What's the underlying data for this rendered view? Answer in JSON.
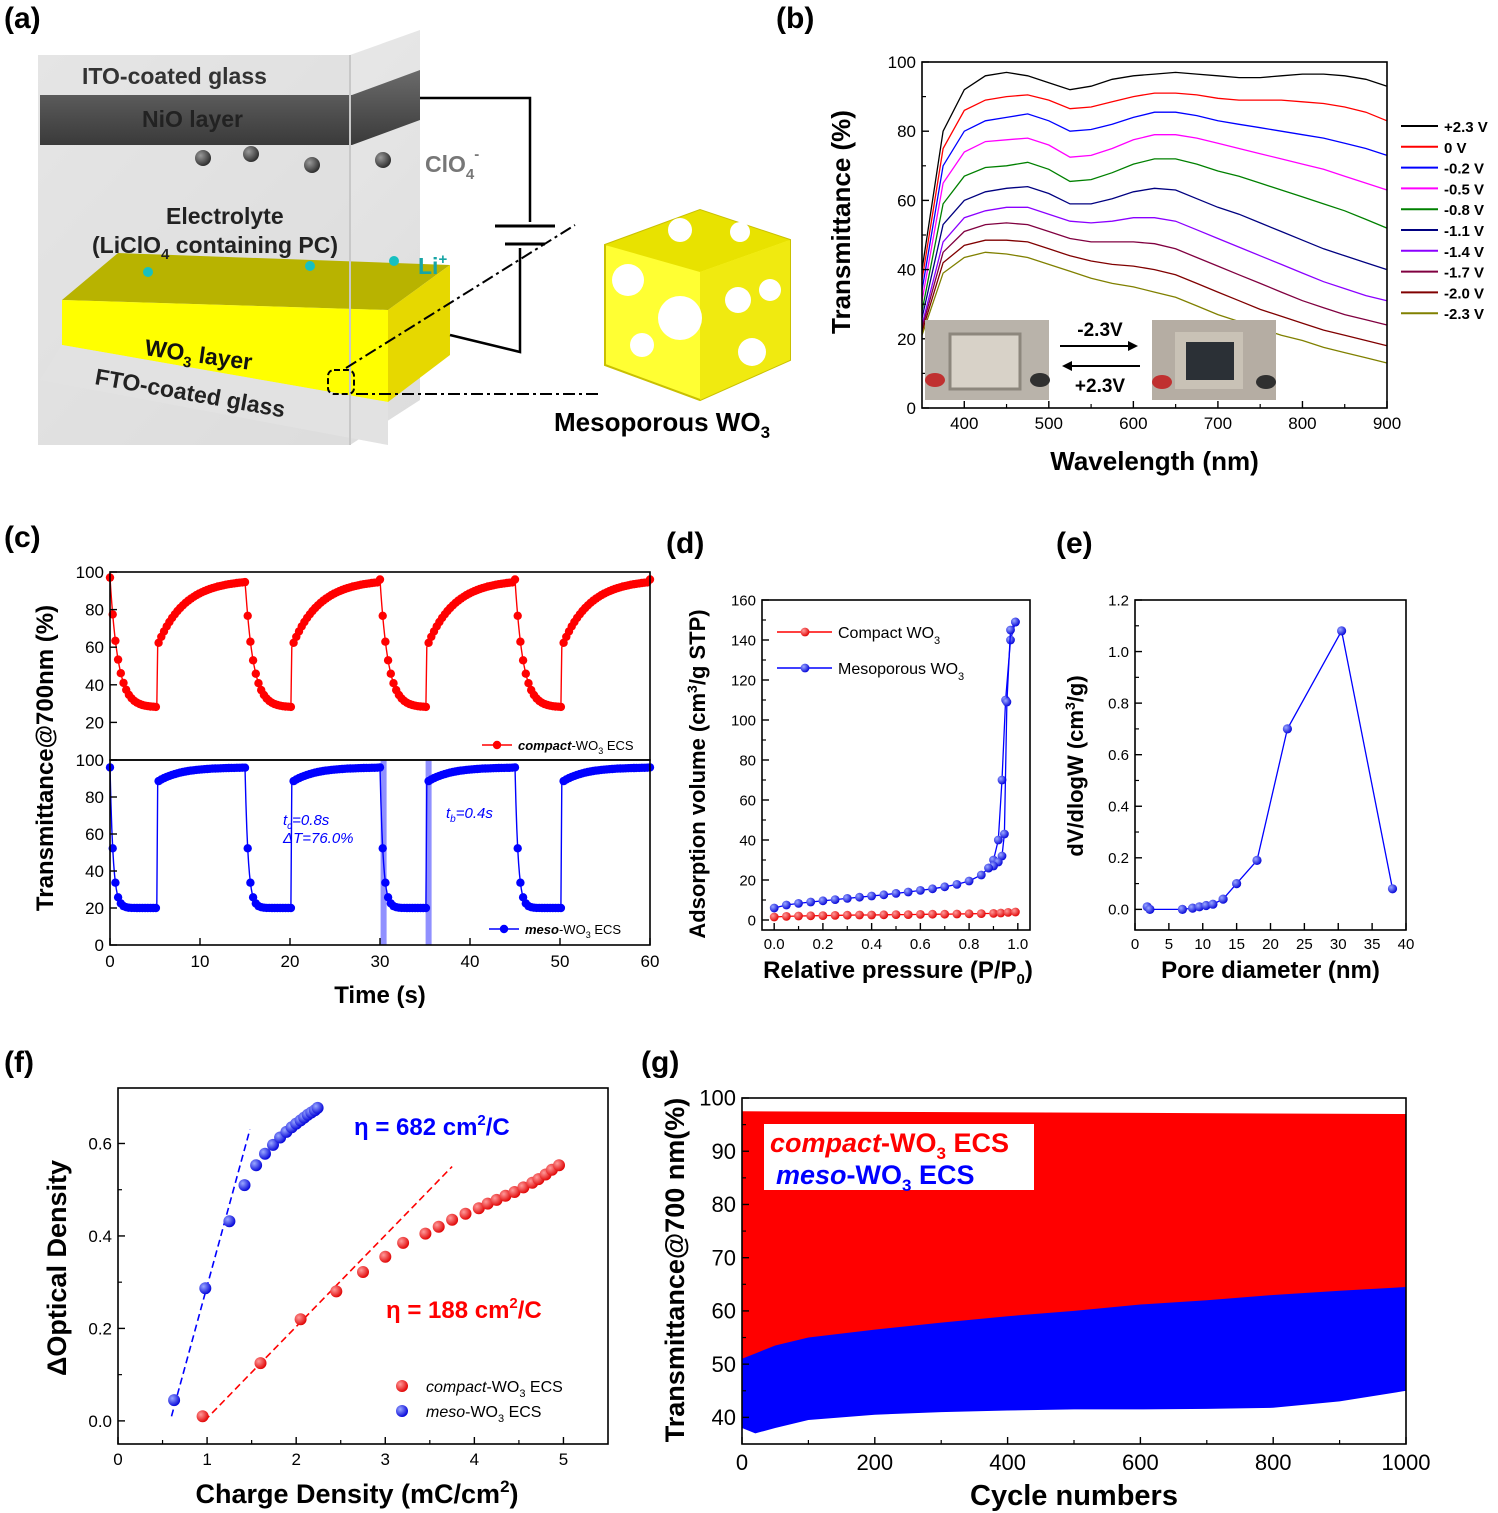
{
  "figure": {
    "panel_labels": [
      "(a)",
      "(b)",
      "(c)",
      "(d)",
      "(e)",
      "(f)",
      "(g)"
    ],
    "schematic": {
      "ito": "ITO-coated glass",
      "nio": "NiO layer",
      "clo4": "ClO",
      "clo4_sub": "4",
      "clo4_sup": "-",
      "electrolyte_1": "Electrolyte",
      "electrolyte_2a": "(LiClO",
      "electrolyte_2b": "4",
      "electrolyte_2c": " containing PC)",
      "li": "Li",
      "li_sup": "+",
      "wo3_a": "WO",
      "wo3_b": "3",
      "wo3_c": " layer",
      "fto": "FTO-coated glass",
      "meso_a": "Mesoporous WO",
      "meso_b": "3"
    },
    "inset_b": {
      "color_label": "-2.3V",
      "bleach_label": "+2.3V"
    },
    "panel_c_notes": {
      "tc_a": "t",
      "tc_b": "c",
      "tc_c": "=0.8s",
      "dT": "ΔT=76.0%",
      "tb_a": "t",
      "tb_b": "b",
      "tb_c": "=0.4s"
    },
    "panel_g_legend": {
      "compact_a": "compact",
      "compact_b": "-WO",
      "compact_c": "3",
      "compact_d": " ECS",
      "meso_a": "meso",
      "meso_b": "-WO",
      "meso_c": "3",
      "meso_d": " ECS"
    }
  },
  "chart_data": [
    {
      "id": "b",
      "type": "line",
      "xlabel": "Wavelength (nm)",
      "ylabel": "Transmittance (%)",
      "xlim": [
        350,
        900
      ],
      "ylim": [
        0,
        100
      ],
      "xticks": [
        400,
        500,
        600,
        700,
        800,
        900
      ],
      "yticks": [
        0,
        20,
        40,
        60,
        80,
        100
      ],
      "x": [
        350,
        375,
        400,
        425,
        450,
        475,
        500,
        525,
        550,
        575,
        600,
        625,
        650,
        675,
        700,
        725,
        750,
        775,
        800,
        825,
        850,
        875,
        900
      ],
      "series": [
        {
          "name": "+2.3 V",
          "color": "#000000",
          "values": [
            40,
            80,
            92,
            96,
            97,
            96,
            94,
            92,
            93,
            95,
            96,
            96.5,
            97,
            96.5,
            96,
            95.5,
            95.5,
            96,
            96.5,
            96.5,
            96,
            95,
            93
          ]
        },
        {
          "name": "0 V",
          "color": "#ff0000",
          "values": [
            37,
            75,
            86,
            89,
            90,
            90.5,
            89,
            86.5,
            87,
            88.5,
            90,
            91,
            91,
            90.5,
            89.5,
            89,
            89,
            89,
            88.5,
            88,
            87,
            85.5,
            83
          ]
        },
        {
          "name": "-0.2 V",
          "color": "#0000ff",
          "values": [
            34,
            70,
            80,
            83,
            84,
            85,
            83,
            80,
            80.5,
            82,
            84,
            85.5,
            85.5,
            84.5,
            83,
            82,
            81,
            80,
            79,
            78,
            76.5,
            75,
            73
          ]
        },
        {
          "name": "-0.5 V",
          "color": "#ff00ff",
          "values": [
            31,
            65,
            74,
            77,
            77.5,
            78,
            76,
            72.5,
            73,
            75,
            77.5,
            79,
            79,
            78,
            76.5,
            75,
            73.5,
            72,
            70.5,
            69,
            67,
            65,
            63
          ]
        },
        {
          "name": "-0.8 V",
          "color": "#008000",
          "values": [
            28,
            59,
            67,
            69.5,
            70,
            71,
            69,
            65.5,
            66,
            68,
            70.5,
            72,
            72,
            70.5,
            68.5,
            67,
            65,
            63,
            61,
            59,
            57,
            54.5,
            52
          ]
        },
        {
          "name": "-1.1 V",
          "color": "#000080",
          "values": [
            26,
            53,
            60,
            62.5,
            63.5,
            64,
            62,
            59,
            59,
            60.5,
            62.5,
            63.5,
            63,
            60.5,
            58,
            56,
            53.5,
            51,
            48.5,
            46,
            44,
            42,
            40
          ]
        },
        {
          "name": "-1.4 V",
          "color": "#8b00ff",
          "values": [
            24,
            48,
            55,
            57,
            58,
            58,
            56,
            54,
            53.5,
            54,
            55,
            55,
            54,
            51.5,
            49,
            46.5,
            44,
            41.5,
            39,
            36.5,
            34.5,
            32.5,
            31
          ]
        },
        {
          "name": "-1.7 V",
          "color": "#800040",
          "values": [
            23,
            45,
            51,
            53,
            53.5,
            53,
            51,
            49,
            48,
            48,
            48,
            47.5,
            46,
            43.5,
            41,
            38.5,
            36,
            33.5,
            31,
            29,
            27,
            25.5,
            24
          ]
        },
        {
          "name": "-2.0 V",
          "color": "#800000",
          "values": [
            22,
            42,
            47,
            48.5,
            48.5,
            48,
            46,
            44,
            42.5,
            41.5,
            41,
            40,
            38.5,
            36,
            33.5,
            31,
            28.5,
            26.5,
            24.5,
            22.5,
            21,
            19.5,
            18
          ]
        },
        {
          "name": "-2.3 V",
          "color": "#808000",
          "values": [
            21,
            39,
            43.5,
            45,
            44.5,
            43.5,
            41.5,
            39.5,
            37.5,
            36,
            35,
            33.5,
            32,
            29.5,
            27,
            25,
            23,
            21,
            19.5,
            17.5,
            16,
            14.5,
            13
          ]
        }
      ]
    },
    {
      "id": "c-top",
      "type": "line",
      "ylim": [
        0,
        100
      ],
      "yticks": [
        20,
        40,
        60,
        80,
        100
      ],
      "xlim": [
        0,
        60
      ],
      "series": [
        {
          "name": "compact-WO3 ECS",
          "legend_a": "compact",
          "legend_b": "-WO",
          "legend_c": "3",
          "legend_d": " ECS",
          "color": "#ff0000",
          "period": 15,
          "color_low": 28,
          "bleach_start": 60,
          "bleach_high": 96,
          "initial": 97
        }
      ]
    },
    {
      "id": "c-bottom",
      "type": "line",
      "xlabel": "Time (s)",
      "ylabel": "Transmittance@700nm (%)",
      "xlim": [
        0,
        60
      ],
      "ylim": [
        0,
        100
      ],
      "xticks": [
        0,
        10,
        20,
        30,
        40,
        50,
        60
      ],
      "yticks": [
        0,
        20,
        40,
        60,
        80,
        100
      ],
      "series": [
        {
          "name": "meso-WO3 ECS",
          "legend_a": "meso",
          "legend_b": "-WO",
          "legend_c": "3",
          "legend_d": " ECS",
          "color": "#0000ff",
          "period": 15,
          "color_low": 20,
          "bleach_start": 88,
          "bleach_high": 96,
          "initial": 96
        }
      ],
      "highlights_s": [
        30.4,
        35.4
      ]
    },
    {
      "id": "d",
      "type": "line",
      "xlabel_a": "Relative pressure (P/P",
      "xlabel_b": "0",
      "xlabel_c": ")",
      "ylabel_a": "Adsorption volume (cm",
      "ylabel_b": "3",
      "ylabel_c": "/g STP)",
      "xlim": [
        -0.05,
        1.05
      ],
      "ylim": [
        -5,
        160
      ],
      "xticks": [
        0.0,
        0.2,
        0.4,
        0.6,
        0.8,
        1.0
      ],
      "yticks": [
        0,
        20,
        40,
        60,
        80,
        100,
        120,
        140,
        160
      ],
      "series": [
        {
          "name": "Compact WO3",
          "legend_a": "Compact WO",
          "legend_b": "3",
          "color": "#ff0000",
          "x": [
            0.0,
            0.05,
            0.1,
            0.15,
            0.2,
            0.25,
            0.3,
            0.35,
            0.4,
            0.45,
            0.5,
            0.55,
            0.6,
            0.65,
            0.7,
            0.75,
            0.8,
            0.85,
            0.9,
            0.93,
            0.96,
            0.99
          ],
          "values": [
            1.5,
            1.8,
            2.0,
            2.1,
            2.2,
            2.3,
            2.4,
            2.5,
            2.5,
            2.6,
            2.7,
            2.7,
            2.8,
            2.9,
            2.9,
            3.0,
            3.1,
            3.2,
            3.3,
            3.5,
            3.8,
            4.0
          ]
        },
        {
          "name": "Mesoporous WO3",
          "legend_a": "Mesoporous WO",
          "legend_b": "3",
          "color": "#0000ff",
          "x": [
            0.0,
            0.05,
            0.1,
            0.15,
            0.2,
            0.25,
            0.3,
            0.35,
            0.4,
            0.45,
            0.5,
            0.55,
            0.6,
            0.65,
            0.7,
            0.75,
            0.8,
            0.85,
            0.88,
            0.9,
            0.92,
            0.935,
            0.95,
            0.97,
            0.99
          ],
          "values": [
            6,
            7.5,
            8.3,
            9,
            9.6,
            10.2,
            10.8,
            11.4,
            12,
            12.6,
            13.3,
            14,
            14.8,
            15.6,
            16.6,
            17.8,
            19.5,
            22.5,
            26,
            30,
            40,
            70,
            110,
            140,
            149
          ]
        },
        {
          "name": "Mesoporous WO3 desorption",
          "color": "#0000ff",
          "x": [
            0.99,
            0.97,
            0.955,
            0.945,
            0.935,
            0.92,
            0.9,
            0.88
          ],
          "values": [
            149,
            145,
            109,
            43,
            32,
            29,
            27,
            26
          ]
        }
      ]
    },
    {
      "id": "e",
      "type": "line",
      "xlabel": "Pore diameter (nm)",
      "ylabel_a": "dV/dlogW (cm",
      "ylabel_b": "3",
      "ylabel_c": "/g)",
      "xlim": [
        0,
        40
      ],
      "ylim": [
        -0.08,
        1.2
      ],
      "xticks": [
        0,
        5,
        10,
        15,
        20,
        25,
        30,
        35,
        40
      ],
      "yticks": [
        0.0,
        0.2,
        0.4,
        0.6,
        0.8,
        1.0,
        1.2
      ],
      "series": [
        {
          "name": "pore distribution",
          "color": "#0000ff",
          "x": [
            1.8,
            2.2,
            7,
            8.5,
            9.5,
            10.5,
            11.5,
            13,
            15,
            18,
            22.5,
            30.5,
            38
          ],
          "values": [
            0.01,
            0.0,
            0.0,
            0.005,
            0.01,
            0.015,
            0.02,
            0.04,
            0.1,
            0.19,
            0.7,
            1.08,
            0.08
          ]
        }
      ]
    },
    {
      "id": "f",
      "type": "scatter",
      "xlabel_a": "Charge Density (mC/cm",
      "xlabel_b": "2",
      "xlabel_c": ")",
      "ylabel": "ΔOptical Density",
      "xlim": [
        0,
        5.5
      ],
      "ylim": [
        -0.05,
        0.72
      ],
      "xticks": [
        0,
        1,
        2,
        3,
        4,
        5
      ],
      "yticks": [
        0.0,
        0.2,
        0.4,
        0.6
      ],
      "annotations": [
        {
          "text_a": "η = 682 cm",
          "text_b": "2",
          "text_c": "/C",
          "color": "#0000ff"
        },
        {
          "text_a": "η = 188 cm",
          "text_b": "2",
          "text_c": "/C",
          "color": "#ff0000"
        }
      ],
      "series": [
        {
          "name": "compact-WO3 ECS",
          "legend_a": "compact",
          "legend_b": "-WO",
          "legend_c": "3",
          "legend_d": " ECS",
          "color": "#ff0000",
          "x": [
            0.95,
            1.6,
            2.05,
            2.45,
            2.75,
            3.0,
            3.2,
            3.45,
            3.6,
            3.75,
            3.9,
            4.05,
            4.15,
            4.25,
            4.35,
            4.45,
            4.55,
            4.65,
            4.72,
            4.8,
            4.87,
            4.95
          ],
          "values": [
            0.01,
            0.125,
            0.22,
            0.28,
            0.322,
            0.355,
            0.385,
            0.405,
            0.42,
            0.435,
            0.448,
            0.46,
            0.47,
            0.478,
            0.487,
            0.495,
            0.505,
            0.515,
            0.523,
            0.533,
            0.543,
            0.553
          ]
        },
        {
          "name": "meso-WO3 ECS",
          "legend_a": "meso",
          "legend_b": "-WO",
          "legend_c": "3",
          "legend_d": " ECS",
          "color": "#0000ff",
          "x": [
            0.63,
            0.98,
            1.25,
            1.42,
            1.55,
            1.65,
            1.74,
            1.82,
            1.89,
            1.95,
            2.0,
            2.05,
            2.09,
            2.13,
            2.17,
            2.21,
            2.24
          ],
          "values": [
            0.045,
            0.287,
            0.432,
            0.51,
            0.553,
            0.578,
            0.597,
            0.613,
            0.625,
            0.635,
            0.643,
            0.65,
            0.656,
            0.662,
            0.667,
            0.672,
            0.677
          ]
        }
      ],
      "fits": [
        {
          "color": "#0000ff",
          "x": [
            0.6,
            1.48
          ],
          "values": [
            0.01,
            0.63
          ]
        },
        {
          "color": "#ff0000",
          "x": [
            0.97,
            3.75
          ],
          "values": [
            0.0,
            0.55
          ]
        }
      ]
    },
    {
      "id": "g",
      "type": "area",
      "xlabel": "Cycle numbers",
      "ylabel": "Transmittance@700 nm(%)",
      "xlim": [
        0,
        1000
      ],
      "ylim": [
        35,
        100
      ],
      "xticks": [
        0,
        200,
        400,
        600,
        800,
        1000
      ],
      "yticks": [
        40,
        50,
        60,
        70,
        80,
        90,
        100
      ],
      "series": [
        {
          "name": "compact-WO3 ECS",
          "color": "#ff0000",
          "x": [
            0,
            1000
          ],
          "upper": [
            97.5,
            97
          ],
          "lower": [
            51,
            64
          ]
        },
        {
          "name": "meso-WO3 ECS",
          "color": "#0000ff",
          "x": [
            0,
            20,
            50,
            100,
            200,
            300,
            400,
            500,
            600,
            700,
            800,
            900,
            1000
          ],
          "upper": [
            51,
            52,
            53.5,
            55,
            56.5,
            57.8,
            59,
            60,
            61.2,
            62,
            63,
            63.8,
            64.5
          ],
          "lower": [
            38,
            37,
            38,
            39.5,
            40.5,
            41,
            41.3,
            41.5,
            41.5,
            41.6,
            41.8,
            43,
            45
          ]
        }
      ]
    }
  ]
}
